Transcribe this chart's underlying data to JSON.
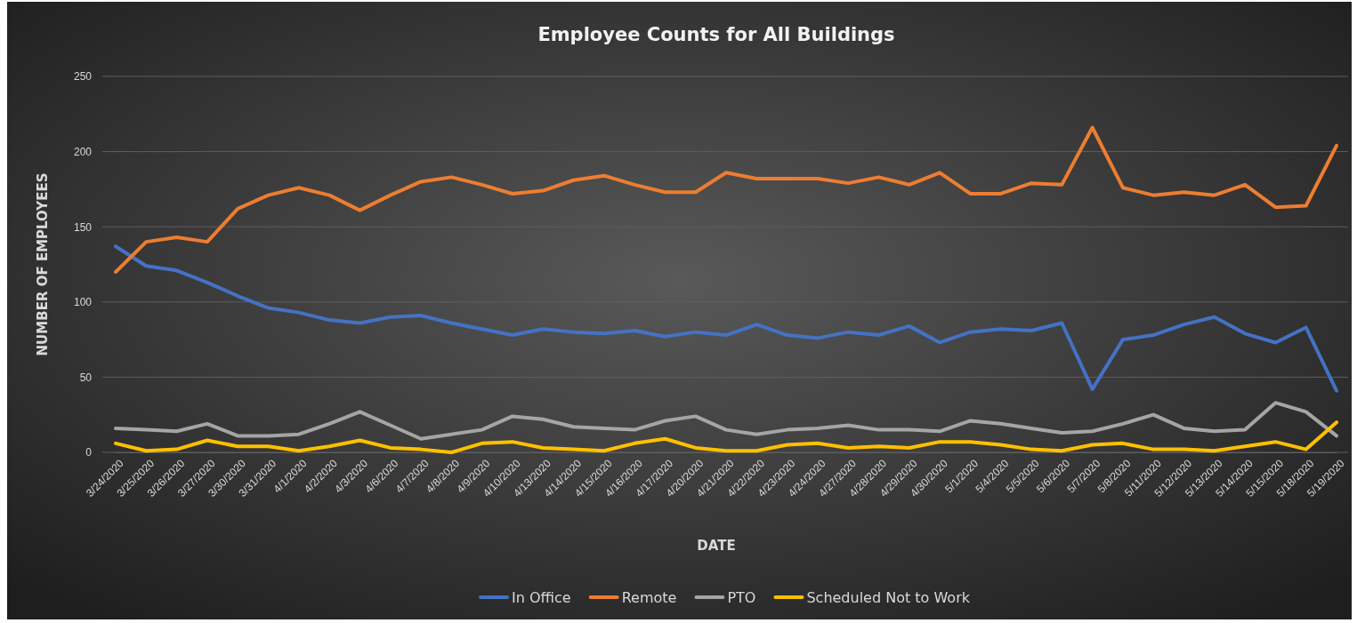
{
  "chart_data": {
    "type": "line",
    "title": "Employee Counts for All Buildings",
    "xlabel": "DATE",
    "ylabel": "NUMBER OF EMPLOYEES",
    "categories": [
      "3/24/2020",
      "3/25/2020",
      "3/26/2020",
      "3/27/2020",
      "3/30/2020",
      "3/31/2020",
      "4/1/2020",
      "4/2/2020",
      "4/3/2020",
      "4/6/2020",
      "4/7/2020",
      "4/8/2020",
      "4/9/2020",
      "4/10/2020",
      "4/13/2020",
      "4/14/2020",
      "4/15/2020",
      "4/16/2020",
      "4/17/2020",
      "4/20/2020",
      "4/21/2020",
      "4/22/2020",
      "4/23/2020",
      "4/24/2020",
      "4/27/2020",
      "4/28/2020",
      "4/29/2020",
      "4/30/2020",
      "5/1/2020",
      "5/4/2020",
      "5/5/2020",
      "5/6/2020",
      "5/7/2020",
      "5/8/2020",
      "5/11/2020",
      "5/12/2020",
      "5/13/2020",
      "5/14/2020",
      "5/15/2020",
      "5/18/2020",
      "5/19/2020"
    ],
    "series": [
      {
        "name": "In Office",
        "color": "#4472c4",
        "values": [
          137,
          124,
          121,
          113,
          104,
          96,
          93,
          88,
          86,
          90,
          91,
          86,
          82,
          78,
          82,
          80,
          79,
          81,
          77,
          80,
          78,
          85,
          78,
          76,
          80,
          78,
          84,
          73,
          80,
          82,
          81,
          86,
          42,
          75,
          78,
          85,
          90,
          79,
          73,
          83,
          41
        ]
      },
      {
        "name": "Remote",
        "color": "#ed7d31",
        "values": [
          120,
          140,
          143,
          140,
          162,
          171,
          176,
          171,
          161,
          171,
          180,
          183,
          178,
          172,
          174,
          181,
          184,
          178,
          173,
          173,
          186,
          182,
          182,
          182,
          179,
          183,
          178,
          186,
          172,
          172,
          179,
          178,
          216,
          176,
          171,
          173,
          171,
          178,
          163,
          164,
          204
        ]
      },
      {
        "name": "PTO",
        "color": "#a5a5a5",
        "values": [
          16,
          15,
          14,
          19,
          11,
          11,
          12,
          19,
          27,
          18,
          9,
          12,
          15,
          24,
          22,
          17,
          16,
          15,
          21,
          24,
          15,
          12,
          15,
          16,
          18,
          15,
          15,
          14,
          21,
          19,
          16,
          13,
          14,
          19,
          25,
          16,
          14,
          15,
          33,
          27,
          11
        ]
      },
      {
        "name": "Scheduled Not to Work",
        "color": "#ffc000",
        "values": [
          6,
          1,
          2,
          8,
          4,
          4,
          1,
          4,
          8,
          3,
          2,
          0,
          6,
          7,
          3,
          2,
          1,
          6,
          9,
          3,
          1,
          1,
          5,
          6,
          3,
          4,
          3,
          7,
          7,
          5,
          2,
          1,
          5,
          6,
          2,
          2,
          1,
          4,
          7,
          2,
          20
        ]
      }
    ],
    "ylim": [
      0,
      250
    ],
    "yticks": [
      0,
      50,
      100,
      150,
      200,
      250
    ],
    "grid": "y",
    "legend": "bottom",
    "marker": "none",
    "line_style": "solid"
  }
}
